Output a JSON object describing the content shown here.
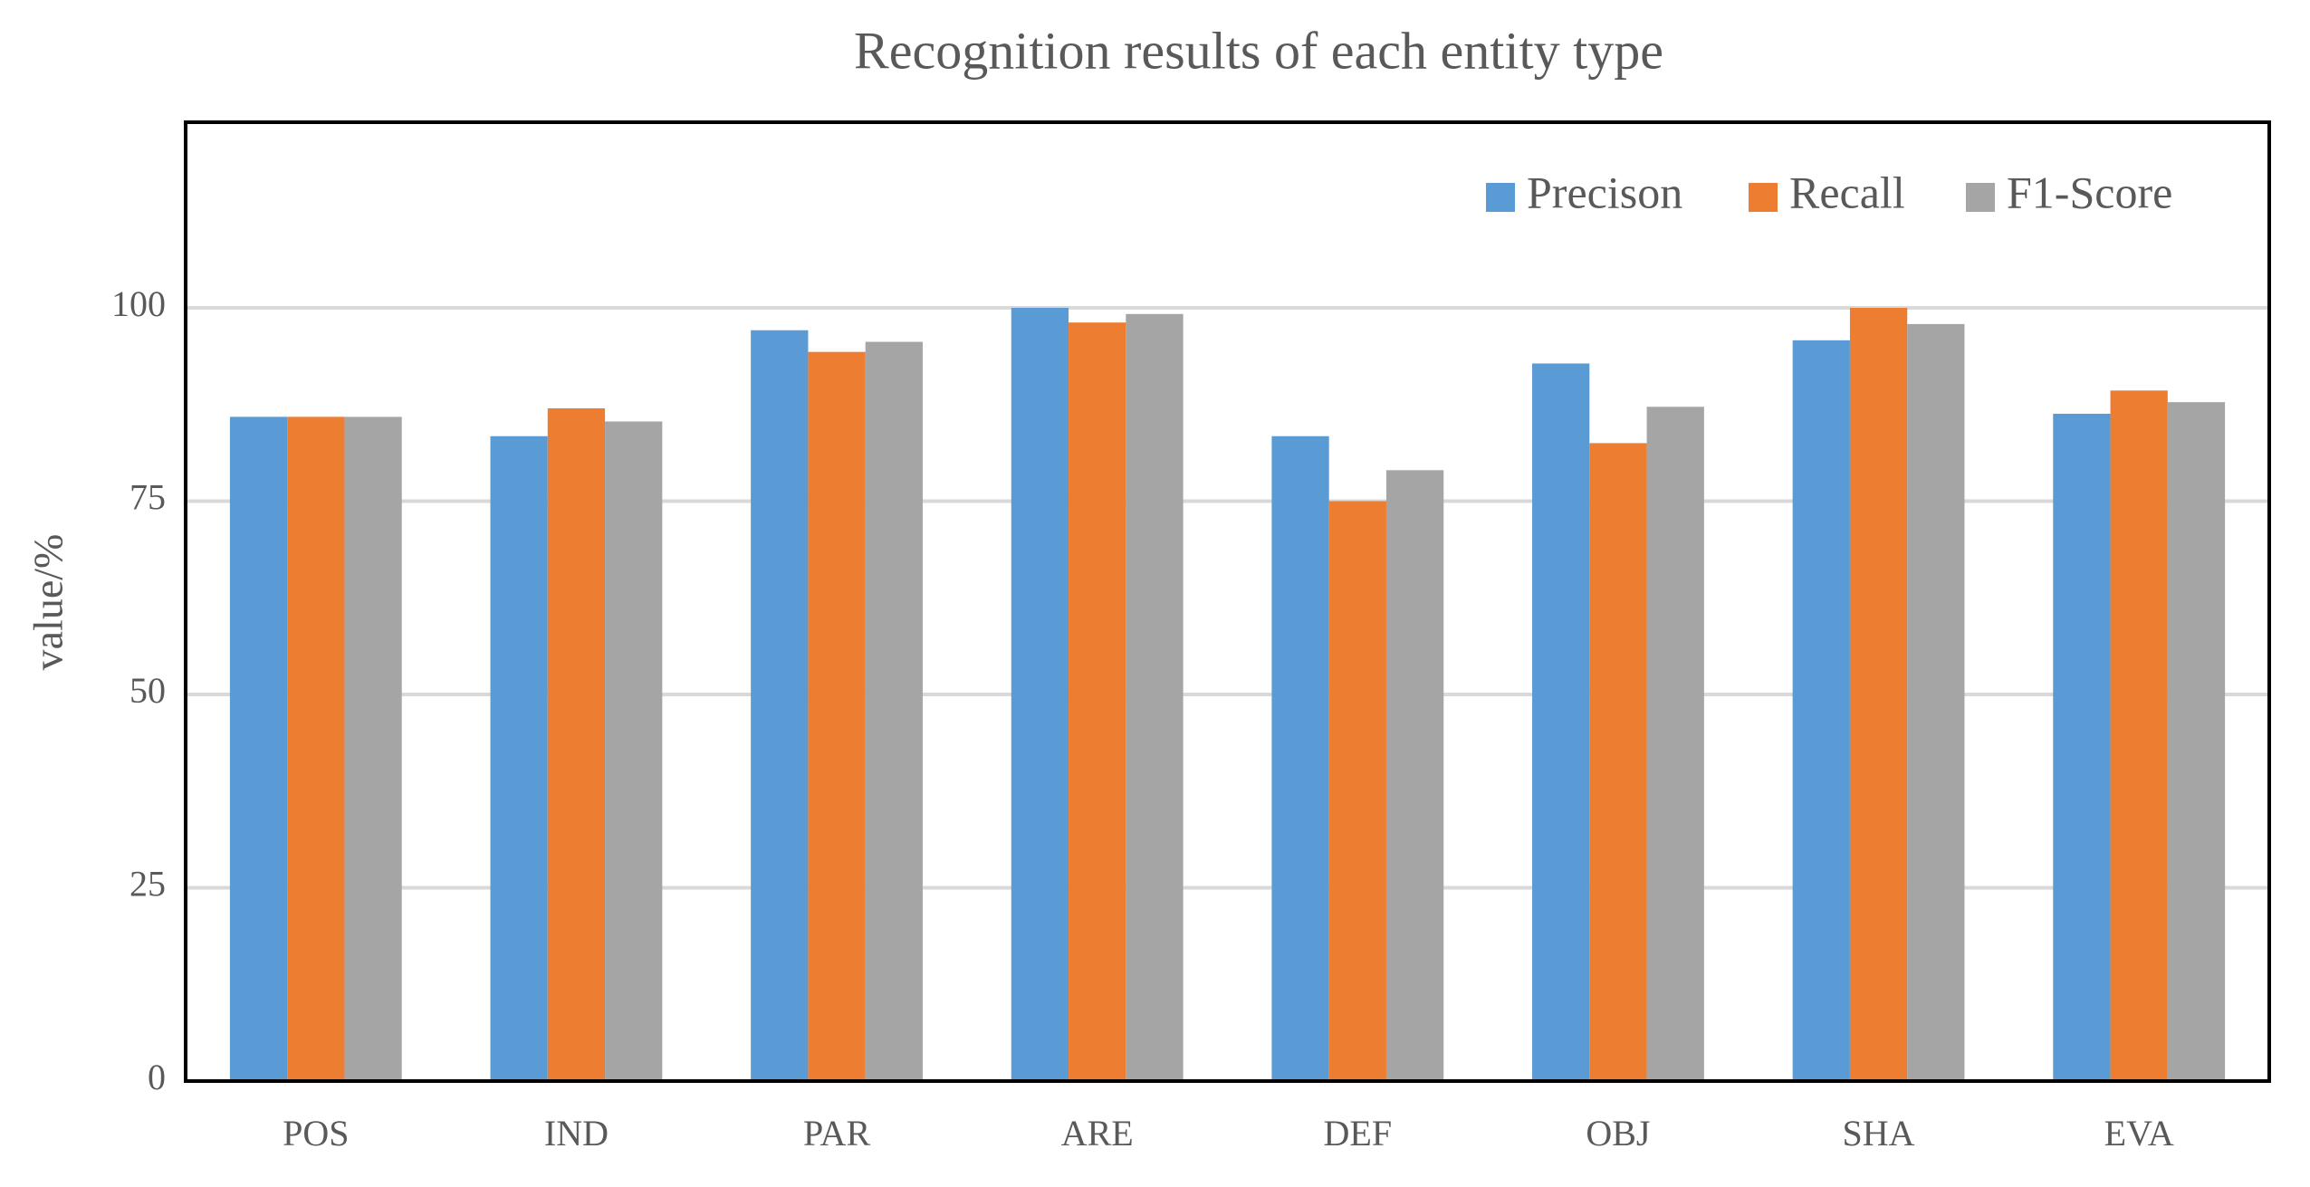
{
  "chart_data": {
    "type": "bar",
    "title": "Recognition results of each entity type",
    "y_label": "value/%",
    "categories": [
      "POS",
      "IND",
      "PAR",
      "ARE",
      "DEF",
      "OBJ",
      "SHA",
      "EVA"
    ],
    "series": [
      {
        "name": "Precison",
        "color": "#5b9bd5",
        "values": [
          85.9,
          83.4,
          97.1,
          100,
          83.4,
          92.8,
          95.8,
          86.3
        ]
      },
      {
        "name": "Recall",
        "color": "#ed7d31",
        "values": [
          85.9,
          87.0,
          94.3,
          98.1,
          75.0,
          82.5,
          100,
          89.3
        ]
      },
      {
        "name": "F1-Score",
        "color": "#a5a5a5",
        "values": [
          85.9,
          85.3,
          95.6,
          99.2,
          79.0,
          87.2,
          97.9,
          87.8
        ]
      }
    ],
    "ylim": [
      0,
      124
    ],
    "yticks": [
      0,
      25,
      50,
      75,
      100
    ],
    "grid": true,
    "legend": "top-right"
  }
}
